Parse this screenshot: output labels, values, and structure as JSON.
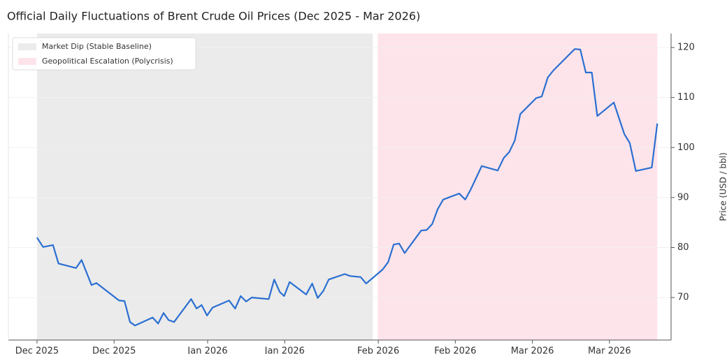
{
  "chart_data": {
    "type": "line",
    "title": "Official Daily Fluctuations of Brent Crude Oil Prices (Dec 2025 - Mar 2026)",
    "y_label": "Price (USD / bbl)",
    "y_axis_side": "right",
    "grid": true,
    "legend_position": "upper left",
    "xlim": [
      -5.2,
      115.2
    ],
    "xticks": [
      {
        "value": 0,
        "label": "Dec 2025"
      },
      {
        "value": 14,
        "label": "Dec 2025"
      },
      {
        "value": 31,
        "label": "Jan 2026"
      },
      {
        "value": 45,
        "label": "Jan 2026"
      },
      {
        "value": 62,
        "label": "Feb 2026"
      },
      {
        "value": 76,
        "label": "Feb 2026"
      },
      {
        "value": 90,
        "label": "Mar 2026"
      },
      {
        "value": 104,
        "label": "Mar 2026"
      }
    ],
    "ylim": [
      61.5,
      122.8
    ],
    "yticks": [
      70,
      80,
      90,
      100,
      110,
      120
    ],
    "regions": [
      {
        "name": "Market Dip (Stable Baseline)",
        "color": "#ebebeb",
        "start": 0,
        "end": 61
      },
      {
        "name": "Geopolitical Escalation (Polycrisis)",
        "color": "#fde4ea",
        "start": 61.9,
        "end": 112.7
      }
    ],
    "series": [
      {
        "color": "#2a6fd1",
        "x": [
          0,
          1.1,
          2.9,
          3.9,
          7.1,
          8.1,
          9.9,
          10.8,
          14.9,
          15.9,
          16.9,
          17.8,
          21.0,
          22.0,
          23.0,
          23.9,
          24.9,
          28.0,
          29.0,
          29.9,
          30.9,
          31.9,
          34.9,
          36.0,
          37.0,
          38.0,
          39.0,
          42.1,
          43.1,
          44.1,
          44.9,
          45.9,
          48.9,
          50.0,
          51.0,
          52.0,
          53.0,
          55.9,
          56.9,
          58.8,
          59.8,
          62.8,
          63.8,
          64.8,
          65.8,
          66.8,
          69.8,
          70.8,
          71.8,
          72.8,
          73.8,
          76.7,
          77.8,
          78.8,
          80.8,
          83.7,
          84.8,
          85.8,
          86.8,
          87.8,
          90.7,
          91.7,
          92.8,
          93.8,
          97.7,
          98.7,
          99.7,
          100.8,
          101.8,
          104.8,
          106.7,
          107.7,
          108.8,
          111.7,
          112.7
        ],
        "values": [
          82.0,
          80.1,
          80.5,
          76.8,
          75.9,
          77.5,
          72.5,
          72.9,
          69.4,
          69.3,
          65.1,
          64.4,
          66.0,
          64.8,
          66.9,
          65.5,
          65.1,
          69.7,
          67.8,
          68.5,
          66.4,
          68.0,
          69.4,
          67.8,
          70.3,
          69.2,
          70.0,
          69.7,
          73.6,
          71.1,
          70.3,
          73.1,
          70.6,
          72.8,
          69.9,
          71.3,
          73.6,
          74.7,
          74.3,
          74.1,
          72.8,
          75.6,
          77.1,
          80.6,
          80.8,
          78.9,
          83.4,
          83.5,
          84.7,
          87.7,
          89.6,
          90.8,
          89.6,
          91.6,
          96.3,
          95.4,
          97.9,
          99.1,
          101.4,
          106.7,
          109.9,
          110.2,
          114.0,
          115.4,
          119.7,
          119.6,
          115.0,
          115.0,
          106.3,
          109.0,
          102.7,
          100.9,
          95.3,
          96.0,
          104.8
        ]
      }
    ]
  }
}
